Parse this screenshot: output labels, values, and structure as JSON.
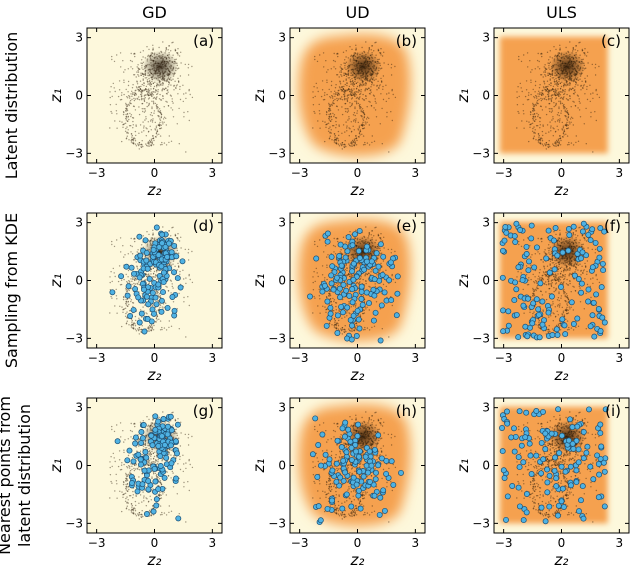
{
  "chart_data": {
    "type": "scatter",
    "column_titles": [
      "GD",
      "UD",
      "ULS"
    ],
    "row_labels": [
      [
        "Latent distribution"
      ],
      [
        "Sampling from KDE"
      ],
      [
        "Nearest points from",
        "latent distribution"
      ]
    ],
    "xlabel": "z₂",
    "ylabel": "z₁",
    "xlim": [
      -3.5,
      3.5
    ],
    "ylim": [
      -3.5,
      3.5
    ],
    "ticks": [
      -3,
      0,
      3
    ],
    "tick_labels": [
      "−3",
      "0",
      "3"
    ],
    "panels": [
      {
        "label": "(a)",
        "density": "none",
        "overlay": "none"
      },
      {
        "label": "(b)",
        "density": "blob",
        "overlay": "none"
      },
      {
        "label": "(c)",
        "density": "square",
        "overlay": "none"
      },
      {
        "label": "(d)",
        "density": "none",
        "overlay": "kde_samples_gd"
      },
      {
        "label": "(e)",
        "density": "blob",
        "overlay": "kde_samples_ud"
      },
      {
        "label": "(f)",
        "density": "square",
        "overlay": "kde_samples_uls"
      },
      {
        "label": "(g)",
        "density": "none",
        "overlay": "nearest_gd"
      },
      {
        "label": "(h)",
        "density": "blob",
        "overlay": "nearest_ud"
      },
      {
        "label": "(i)",
        "density": "square",
        "overlay": "nearest_uls"
      }
    ],
    "latent_cluster": {
      "x_range": [
        -2.4,
        2.0
      ],
      "y_range": [
        -3.0,
        2.9
      ],
      "core": [
        0.3,
        1.4
      ]
    },
    "overlay_counts": {
      "kde_samples_gd": 150,
      "kde_samples_ud": 150,
      "kde_samples_uls": 150,
      "nearest_gd": 130,
      "nearest_ud": 130,
      "nearest_uls": 130
    },
    "colors": {
      "background": "#fdf8dc",
      "density": "#f5a150",
      "latent_points": "#2a1a08",
      "samples_fill": "#4fb2e3",
      "samples_edge": "#1d4f73"
    }
  }
}
